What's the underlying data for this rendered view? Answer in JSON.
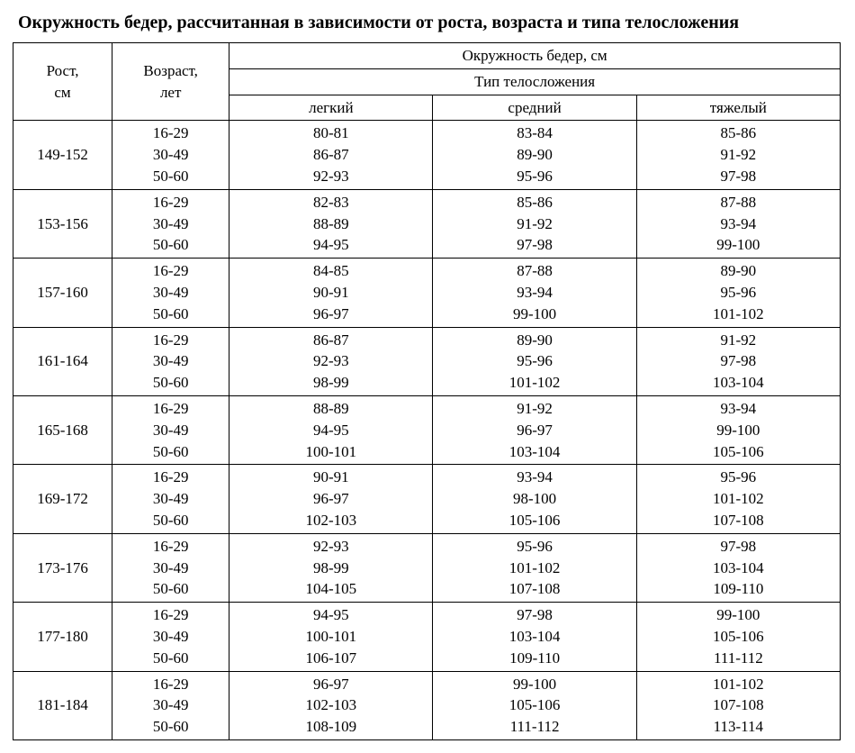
{
  "title": "Окружность бедер, рассчитанная в зависимости от роста, возраста и типа телосложения",
  "headers": {
    "height": "Рост,\nсм",
    "age": "Возраст,\nлет",
    "top": "Окружность бедер, см",
    "bodytype": "Тип телосложения",
    "light": "легкий",
    "medium": "средний",
    "heavy": "тяжелый"
  },
  "ages": [
    "16-29",
    "30-49",
    "50-60"
  ],
  "rows": [
    {
      "height": "149-152",
      "light": [
        "80-81",
        "86-87",
        "92-93"
      ],
      "medium": [
        "83-84",
        "89-90",
        "95-96"
      ],
      "heavy": [
        "85-86",
        "91-92",
        "97-98"
      ]
    },
    {
      "height": "153-156",
      "light": [
        "82-83",
        "88-89",
        "94-95"
      ],
      "medium": [
        "85-86",
        "91-92",
        "97-98"
      ],
      "heavy": [
        "87-88",
        "93-94",
        "99-100"
      ]
    },
    {
      "height": "157-160",
      "light": [
        "84-85",
        "90-91",
        "96-97"
      ],
      "medium": [
        "87-88",
        "93-94",
        "99-100"
      ],
      "heavy": [
        "89-90",
        "95-96",
        "101-102"
      ]
    },
    {
      "height": "161-164",
      "light": [
        "86-87",
        "92-93",
        "98-99"
      ],
      "medium": [
        "89-90",
        "95-96",
        "101-102"
      ],
      "heavy": [
        "91-92",
        "97-98",
        "103-104"
      ]
    },
    {
      "height": "165-168",
      "light": [
        "88-89",
        "94-95",
        "100-101"
      ],
      "medium": [
        "91-92",
        "96-97",
        "103-104"
      ],
      "heavy": [
        "93-94",
        "99-100",
        "105-106"
      ]
    },
    {
      "height": "169-172",
      "light": [
        "90-91",
        "96-97",
        "102-103"
      ],
      "medium": [
        "93-94",
        "98-100",
        "105-106"
      ],
      "heavy": [
        "95-96",
        "101-102",
        "107-108"
      ]
    },
    {
      "height": "173-176",
      "light": [
        "92-93",
        "98-99",
        "104-105"
      ],
      "medium": [
        "95-96",
        "101-102",
        "107-108"
      ],
      "heavy": [
        "97-98",
        "103-104",
        "109-110"
      ]
    },
    {
      "height": "177-180",
      "light": [
        "94-95",
        "100-101",
        "106-107"
      ],
      "medium": [
        "97-98",
        "103-104",
        "109-110"
      ],
      "heavy": [
        "99-100",
        "105-106",
        "111-112"
      ]
    },
    {
      "height": "181-184",
      "light": [
        "96-97",
        "102-103",
        "108-109"
      ],
      "medium": [
        "99-100",
        "105-106",
        "111-112"
      ],
      "heavy": [
        "101-102",
        "107-108",
        "113-114"
      ]
    }
  ]
}
